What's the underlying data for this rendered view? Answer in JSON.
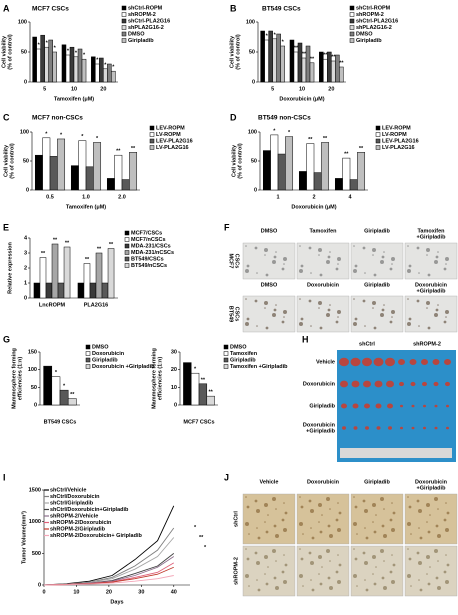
{
  "chart_data": [
    {
      "type": "bar",
      "label": "A",
      "title": "MCF7 CSCs",
      "ylabel": [
        "Cell viability",
        "(% of control)"
      ],
      "xlabel": "Tamoxifen (μM)",
      "categories": [
        "5",
        "10",
        "20"
      ],
      "ylim": [
        0,
        100
      ],
      "yticks": [
        0,
        50,
        100
      ],
      "series": [
        {
          "name": "shCtrl-ROPM",
          "color": "#000000",
          "values": [
            75,
            62,
            42
          ],
          "annotations": [
            null,
            null,
            null
          ]
        },
        {
          "name": "shROPM-2",
          "color": "#ffffff",
          "values": [
            55,
            45,
            30
          ],
          "annotations": [
            "*",
            "*",
            "*"
          ]
        },
        {
          "name": "shCtrl-PLA2G16",
          "color": "#3a3a3a",
          "values": [
            78,
            58,
            40
          ],
          "annotations": [
            null,
            null,
            null
          ]
        },
        {
          "name": "shPLA2G16-2",
          "color": "#d9d9d9",
          "values": [
            58,
            42,
            22
          ],
          "annotations": [
            "*",
            "*",
            "*"
          ]
        },
        {
          "name": "DMSO",
          "color": "#7f7f7f",
          "values": [
            70,
            55,
            30
          ],
          "annotations": [
            null,
            null,
            null
          ]
        },
        {
          "name": "Giripladib",
          "color": "#bfbfbf",
          "values": [
            50,
            38,
            18
          ],
          "annotations": [
            "*",
            "*",
            "*"
          ]
        }
      ]
    },
    {
      "type": "bar",
      "label": "B",
      "title": "BT549 CSCs",
      "ylabel": [
        "Cell viability",
        "(% of control)"
      ],
      "xlabel": "Doxorubicin (μM)",
      "categories": [
        "5",
        "10",
        "20"
      ],
      "ylim": [
        0,
        100
      ],
      "yticks": [
        0,
        50,
        100
      ],
      "series": [
        {
          "name": "shCtrl-ROPM",
          "color": "#000000",
          "values": [
            85,
            70,
            50
          ],
          "annotations": [
            null,
            null,
            null
          ]
        },
        {
          "name": "shROPM-2",
          "color": "#ffffff",
          "values": [
            70,
            50,
            38
          ],
          "annotations": [
            "*",
            "**",
            "**"
          ]
        },
        {
          "name": "shCtrl-PLA2G16",
          "color": "#3a3a3a",
          "values": [
            85,
            65,
            50
          ],
          "annotations": [
            null,
            null,
            null
          ]
        },
        {
          "name": "shPLA2G16-2",
          "color": "#d9d9d9",
          "values": [
            72,
            40,
            35
          ],
          "annotations": [
            "*",
            "**",
            "**"
          ]
        },
        {
          "name": "DMSO",
          "color": "#7f7f7f",
          "values": [
            80,
            60,
            45
          ],
          "annotations": [
            null,
            null,
            null
          ]
        },
        {
          "name": "Giripladib",
          "color": "#bfbfbf",
          "values": [
            60,
            32,
            25
          ],
          "annotations": [
            "*",
            "**",
            "**"
          ]
        }
      ]
    },
    {
      "type": "bar",
      "label": "C",
      "title": "MCF7 non-CSCs",
      "ylabel": [
        "Cell viability",
        "(% of control)"
      ],
      "xlabel": "Tamoxifen (μM)",
      "categories": [
        "0.5",
        "1.0",
        "2.0"
      ],
      "ylim": [
        0,
        100
      ],
      "yticks": [
        0,
        50,
        100
      ],
      "series": [
        {
          "name": "LEV-ROPM",
          "color": "#000000",
          "values": [
            60,
            42,
            20
          ],
          "annotations": [
            null,
            null,
            null
          ]
        },
        {
          "name": "LV-ROPM",
          "color": "#ffffff",
          "values": [
            90,
            85,
            60
          ],
          "annotations": [
            "*",
            "*",
            "**"
          ]
        },
        {
          "name": "LEV-PLA2G16",
          "color": "#595959",
          "values": [
            58,
            40,
            18
          ],
          "annotations": [
            null,
            null,
            null
          ]
        },
        {
          "name": "LV-PLA2G16",
          "color": "#bfbfbf",
          "values": [
            88,
            82,
            65
          ],
          "annotations": [
            "*",
            "*",
            "**"
          ]
        }
      ]
    },
    {
      "type": "bar",
      "label": "D",
      "title": "BT549 non-CSCs",
      "ylabel": [
        "Cell viability",
        "(% of control)"
      ],
      "xlabel": "Doxorubicin (μM)",
      "categories": [
        "1",
        "2",
        "4"
      ],
      "ylim": [
        0,
        100
      ],
      "yticks": [
        0,
        50,
        100
      ],
      "series": [
        {
          "name": "LEV-ROPM",
          "color": "#000000",
          "values": [
            68,
            32,
            20
          ],
          "annotations": [
            null,
            null,
            null
          ]
        },
        {
          "name": "LV-ROPM",
          "color": "#ffffff",
          "values": [
            95,
            80,
            55
          ],
          "annotations": [
            "*",
            "**",
            "**"
          ]
        },
        {
          "name": "LEV-PLA2G16",
          "color": "#595959",
          "values": [
            62,
            30,
            18
          ],
          "annotations": [
            null,
            null,
            null
          ]
        },
        {
          "name": "LV-PLA2G16",
          "color": "#bfbfbf",
          "values": [
            92,
            82,
            65
          ],
          "annotations": [
            "*",
            "**",
            "**"
          ]
        }
      ]
    },
    {
      "type": "bar",
      "label": "E",
      "ylabel": [
        "Relative expression"
      ],
      "categories": [
        "LncROPM",
        "PLA2G16"
      ],
      "ylim": [
        0,
        4
      ],
      "yticks": [
        0,
        1,
        2,
        3,
        4
      ],
      "series": [
        {
          "name": "MCF7/CSCs",
          "color": "#000000",
          "values": [
            1.0,
            1.0
          ],
          "annotations": [
            null,
            null
          ]
        },
        {
          "name": "MCF7/nCSCs",
          "color": "#ffffff",
          "values": [
            2.7,
            2.3
          ],
          "annotations": [
            "**",
            "**"
          ]
        },
        {
          "name": "MDA-231/CSCs",
          "color": "#3a3a3a",
          "values": [
            1.0,
            1.0
          ],
          "annotations": [
            null,
            null
          ]
        },
        {
          "name": "MDA-231/nCSCs",
          "color": "#a6a6a6",
          "values": [
            3.6,
            3.0
          ],
          "annotations": [
            "**",
            "**"
          ]
        },
        {
          "name": "BT549/CSCs",
          "color": "#595959",
          "values": [
            1.0,
            1.0
          ],
          "annotations": [
            null,
            null
          ]
        },
        {
          "name": "BT549/nCSCs",
          "color": "#d9d9d9",
          "values": [
            3.4,
            3.3
          ],
          "annotations": [
            "**",
            "**"
          ]
        }
      ]
    },
    {
      "type": "bar",
      "label": "G",
      "ylabel": [
        "Mammosphere forming",
        "efficiencies (1:n)"
      ],
      "xlabel": "BT549 CSCs",
      "categories": [
        null
      ],
      "ylim": [
        0,
        150
      ],
      "yticks": [
        0,
        50,
        100,
        150
      ],
      "series": [
        {
          "name": "DMSO",
          "color": "#000000",
          "values": [
            110
          ],
          "annotations": [
            null
          ]
        },
        {
          "name": "Doxorubicin",
          "color": "#ffffff",
          "values": [
            80
          ],
          "annotations": [
            "*"
          ]
        },
        {
          "name": "Giripladib",
          "color": "#595959",
          "values": [
            42
          ],
          "annotations": [
            "*"
          ]
        },
        {
          "name": "Doxorubicin +Giripladib",
          "color": "#d9d9d9",
          "values": [
            18
          ],
          "annotations": [
            "**"
          ]
        }
      ]
    },
    {
      "type": "bar",
      "ylabel": [
        "Mammosphere forming",
        "efficiencies (1:n)"
      ],
      "xlabel": "MCF7 CSCs",
      "categories": [
        null
      ],
      "ylim": [
        0,
        30
      ],
      "yticks": [
        0,
        10,
        20,
        30
      ],
      "series": [
        {
          "name": "DMSO",
          "color": "#000000",
          "values": [
            24
          ],
          "annotations": [
            null
          ]
        },
        {
          "name": "Tamoxifen",
          "color": "#ffffff",
          "values": [
            18
          ],
          "annotations": [
            "*"
          ]
        },
        {
          "name": "Giripladib",
          "color": "#595959",
          "values": [
            12
          ],
          "annotations": [
            "**"
          ]
        },
        {
          "name": "Tamoxifen +Giripladib",
          "color": "#d9d9d9",
          "values": [
            5
          ],
          "annotations": [
            "**"
          ]
        }
      ]
    },
    {
      "type": "line",
      "label": "I",
      "ylabel": [
        "Tumor Volume(mm³)"
      ],
      "xlabel": "Days",
      "x": [
        0,
        7,
        14,
        21,
        28,
        35,
        40
      ],
      "xlim": [
        0,
        45
      ],
      "xticks": [
        0,
        10,
        20,
        30,
        40
      ],
      "ylim": [
        0,
        1500
      ],
      "yticks": [
        0,
        500,
        1000,
        1500
      ],
      "annotations": [
        "*",
        "**",
        "*"
      ],
      "series": [
        {
          "name": "shCtrl/Vehicle",
          "color": "#000000",
          "values": [
            0,
            20,
            60,
            150,
            400,
            700,
            1250
          ]
        },
        {
          "name": "shCtrl/Doxorubicin",
          "color": "#7f7f7f",
          "values": [
            0,
            15,
            45,
            120,
            300,
            550,
            900
          ]
        },
        {
          "name": "shCtrl/Giripladib",
          "color": "#a6a6a6",
          "values": [
            0,
            15,
            40,
            100,
            250,
            450,
            750
          ]
        },
        {
          "name": "shCtrl/Doxorubicin+Giripladib",
          "color": "#404040",
          "values": [
            0,
            10,
            30,
            70,
            180,
            300,
            500
          ]
        },
        {
          "name": "shROPM-2/Vehicle",
          "color": "#8c6d8c",
          "values": [
            0,
            10,
            30,
            60,
            150,
            280,
            450
          ]
        },
        {
          "name": "shROPM-2/Doxorubicin",
          "color": "#e0607a",
          "values": [
            0,
            8,
            25,
            50,
            120,
            200,
            350
          ]
        },
        {
          "name": "shROPM-2/Giripladib",
          "color": "#c0392b",
          "values": [
            0,
            8,
            20,
            45,
            100,
            170,
            280
          ]
        },
        {
          "name": "shROPM-2/Doxorubicin+ Giripladib",
          "color": "#f4a6b8",
          "values": [
            0,
            5,
            15,
            30,
            60,
            100,
            150
          ]
        }
      ]
    }
  ],
  "images": {
    "F": {
      "label": "F",
      "columns_top": [
        [
          "DMSO"
        ],
        [
          "Tamoxifen"
        ],
        [
          "Giripladib"
        ],
        [
          "Tamoxifen",
          "+Giripladib"
        ]
      ],
      "row_top": [
        "MCF7",
        "CSCs"
      ],
      "columns_bottom": [
        [
          "DMSO"
        ],
        [
          "Doxorubicin"
        ],
        [
          "Giripladib"
        ],
        [
          "Doxorubicin",
          "+Giripladib"
        ]
      ],
      "row_bottom": [
        "BT549",
        "CSCs"
      ]
    },
    "H": {
      "label": "H",
      "columns": [
        "shCtrl",
        "shROPM-2"
      ],
      "rows": [
        [
          "Vehicle"
        ],
        [
          "Doxorubicin"
        ],
        [
          "Giripladib"
        ],
        [
          "Doxorubicin",
          "+Giripladib"
        ]
      ]
    },
    "J": {
      "label": "J",
      "columns": [
        [
          "Vehicle"
        ],
        [
          "Doxorubicin"
        ],
        [
          "Giripladib"
        ],
        [
          "Doxorubicin",
          "+Giripladib"
        ]
      ],
      "rows": [
        "shCtrl",
        "shROPM-2"
      ]
    }
  }
}
